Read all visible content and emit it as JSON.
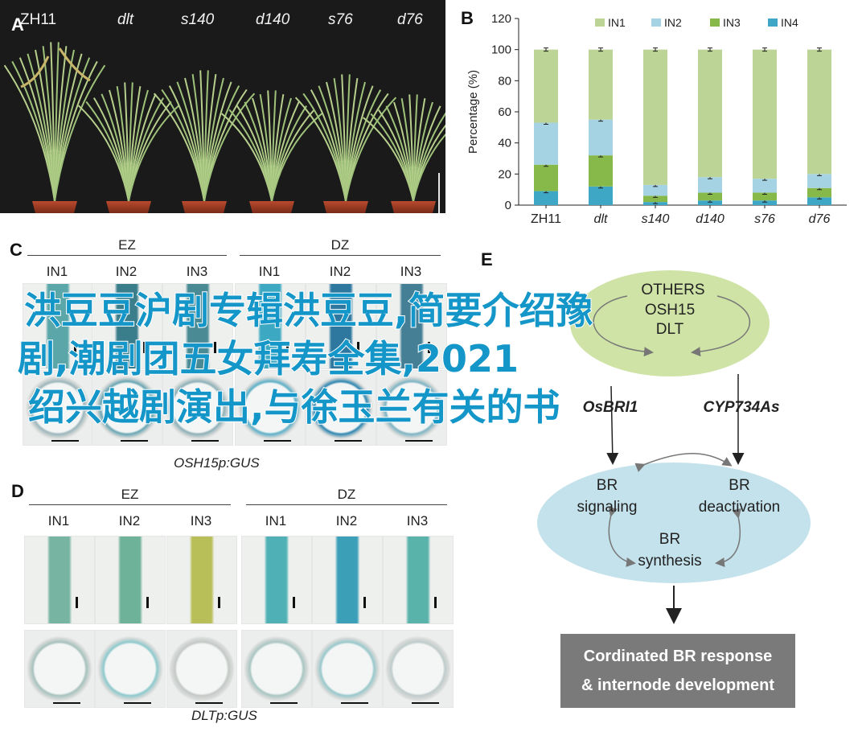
{
  "panels": {
    "a": "A",
    "b": "B",
    "c": "C",
    "d": "D",
    "e": "E"
  },
  "panel_a": {
    "genotypes": [
      "ZH11",
      "dlt",
      "s140",
      "d140",
      "s76",
      "d76"
    ]
  },
  "chart_data": {
    "type": "bar",
    "stacked": true,
    "categories": [
      "ZH11",
      "dlt",
      "s140",
      "d140",
      "s76",
      "d76"
    ],
    "series": [
      {
        "name": "IN4",
        "values": [
          9,
          12,
          2,
          3,
          3,
          5
        ],
        "color": "#3fa7c6"
      },
      {
        "name": "IN3",
        "values": [
          17,
          20,
          4,
          5,
          5,
          6
        ],
        "color": "#86b84a"
      },
      {
        "name": "IN2",
        "values": [
          27,
          23,
          7,
          10,
          9,
          9
        ],
        "color": "#a6d3e3"
      },
      {
        "name": "IN1",
        "values": [
          47,
          45,
          87,
          82,
          83,
          80
        ],
        "color": "#bcd495"
      }
    ],
    "legend_order": [
      "IN1",
      "IN2",
      "IN3",
      "IN4"
    ],
    "ylabel": "Percentage (%)",
    "ylim": [
      0,
      120
    ],
    "yticks": [
      0,
      20,
      40,
      60,
      80,
      100,
      120
    ],
    "legend_position": "top"
  },
  "panel_c": {
    "groups": [
      "EZ",
      "DZ"
    ],
    "internodes": [
      "IN1",
      "IN2",
      "IN3",
      "IN1",
      "IN2",
      "IN3"
    ],
    "caption": "OSH15p:GUS"
  },
  "panel_d": {
    "groups": [
      "EZ",
      "DZ"
    ],
    "internodes": [
      "IN1",
      "IN2",
      "IN3",
      "IN1",
      "IN2",
      "IN3"
    ],
    "caption": "DLTp:GUS"
  },
  "panel_e": {
    "others": "OTHERS",
    "osh15": "OSH15",
    "dlt": "DLT",
    "cobri1": "OsBRI1",
    "cyp734as": "CYP734As",
    "signaling": [
      "BR",
      "signaling"
    ],
    "deactivation": [
      "BR",
      "deactivation"
    ],
    "synthesis": [
      "BR",
      "synthesis"
    ],
    "response": [
      "Cordinated BR response",
      "& internode development"
    ]
  },
  "overlay_lines": [
    "洪豆豆沪剧专辑洪豆豆,简要介绍豫",
    "剧,潮剧团五女拜寿全集,2021",
    "  绍兴越剧演出,与徐玉兰有关的书"
  ]
}
